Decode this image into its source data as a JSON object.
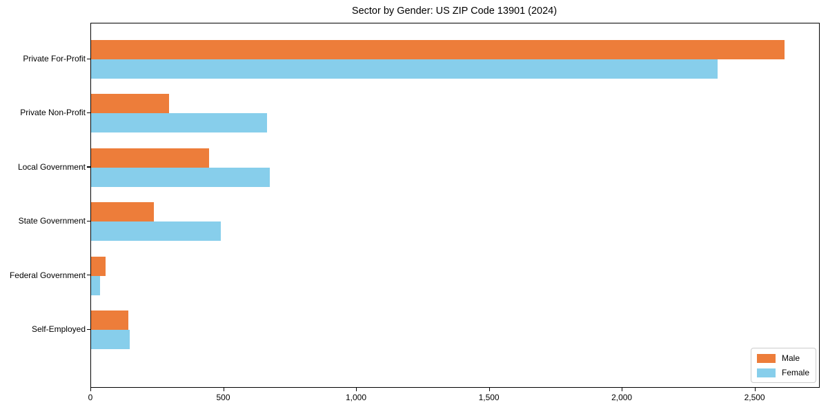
{
  "chart_data": {
    "type": "bar",
    "orientation": "horizontal",
    "title": "Sector by Gender: US ZIP Code 13901 (2024)",
    "categories": [
      "Private For-Profit",
      "Private Non-Profit",
      "Local Government",
      "State Government",
      "Federal Government",
      "Self-Employed"
    ],
    "series": [
      {
        "name": "Male",
        "color": "#ED7D3A",
        "values": [
          2610,
          294,
          444,
          236,
          55,
          140
        ]
      },
      {
        "name": "Female",
        "color": "#87CEEB",
        "values": [
          2357,
          663,
          673,
          489,
          34,
          146
        ]
      }
    ],
    "xlabel": "",
    "ylabel": "",
    "xlim": [
      0,
      2740
    ],
    "x_ticks": [
      0,
      500,
      1000,
      1500,
      2000,
      2500
    ],
    "x_tick_labels": [
      "0",
      "500",
      "1,000",
      "1,500",
      "2,000",
      "2,500"
    ],
    "grid": false,
    "legend_position": "lower right",
    "background_color": "#ffffff",
    "spine_color": "#000000"
  }
}
